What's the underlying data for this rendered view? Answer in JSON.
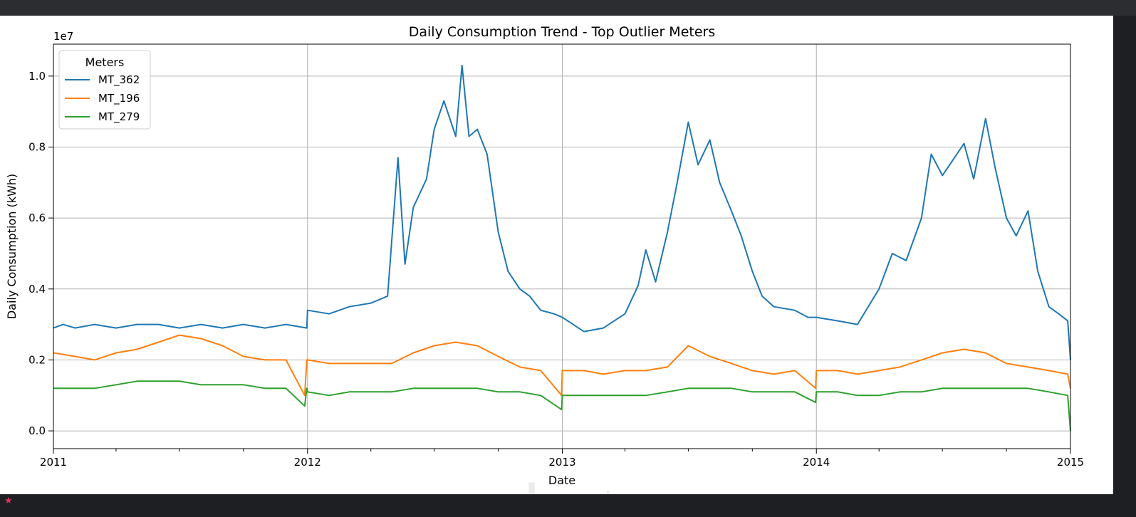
{
  "window": {
    "top_strip_text": "",
    "bottom_note": "",
    "watermark_text": "خمسات"
  },
  "chart_data": {
    "type": "line",
    "title": "Daily Consumption Trend - Top Outlier Meters",
    "xlabel": "Date",
    "ylabel": "Daily Consumption (kWh)",
    "y_scale_label": "1e7",
    "xlim": [
      "2011-01-01",
      "2015-01-01"
    ],
    "ylim": [
      -0.05,
      1.09
    ],
    "y_multiplier": 10000000,
    "x_ticks": [
      "2011",
      "2012",
      "2013",
      "2014",
      "2015"
    ],
    "y_ticks": [
      "0.0",
      "0.2",
      "0.4",
      "0.6",
      "0.8",
      "1.0"
    ],
    "grid": true,
    "legend": {
      "title": "Meters",
      "placement": "top-left"
    },
    "series": [
      {
        "name": "MT_362",
        "color": "#1f77b4",
        "x": [
          "2011-01-01",
          "2011-01-15",
          "2011-02-01",
          "2011-03-01",
          "2011-04-01",
          "2011-05-01",
          "2011-06-01",
          "2011-07-01",
          "2011-08-01",
          "2011-09-01",
          "2011-10-01",
          "2011-11-01",
          "2011-12-01",
          "2011-12-31",
          "2012-01-01",
          "2012-02-01",
          "2012-03-01",
          "2012-04-01",
          "2012-04-25",
          "2012-05-10",
          "2012-05-20",
          "2012-06-01",
          "2012-06-20",
          "2012-07-01",
          "2012-07-15",
          "2012-08-01",
          "2012-08-10",
          "2012-08-20",
          "2012-09-01",
          "2012-09-15",
          "2012-10-01",
          "2012-10-15",
          "2012-11-01",
          "2012-11-15",
          "2012-12-01",
          "2012-12-20",
          "2013-01-01",
          "2013-02-01",
          "2013-03-01",
          "2013-04-01",
          "2013-04-20",
          "2013-05-01",
          "2013-05-15",
          "2013-06-01",
          "2013-06-15",
          "2013-07-01",
          "2013-07-15",
          "2013-08-01",
          "2013-08-15",
          "2013-09-01",
          "2013-09-15",
          "2013-10-01",
          "2013-10-15",
          "2013-11-01",
          "2013-12-01",
          "2013-12-20",
          "2014-01-01",
          "2014-02-01",
          "2014-03-01",
          "2014-04-01",
          "2014-04-20",
          "2014-05-10",
          "2014-06-01",
          "2014-06-15",
          "2014-07-01",
          "2014-07-15",
          "2014-08-01",
          "2014-08-15",
          "2014-09-01",
          "2014-09-15",
          "2014-10-01",
          "2014-10-15",
          "2014-11-01",
          "2014-11-15",
          "2014-12-01",
          "2014-12-15",
          "2014-12-28",
          "2015-01-01"
        ],
        "values": [
          0.29,
          0.3,
          0.29,
          0.3,
          0.29,
          0.3,
          0.3,
          0.29,
          0.3,
          0.29,
          0.3,
          0.29,
          0.3,
          0.29,
          0.34,
          0.33,
          0.35,
          0.36,
          0.38,
          0.77,
          0.47,
          0.63,
          0.71,
          0.85,
          0.93,
          0.83,
          1.03,
          0.83,
          0.85,
          0.78,
          0.56,
          0.45,
          0.4,
          0.38,
          0.34,
          0.33,
          0.32,
          0.28,
          0.29,
          0.33,
          0.41,
          0.51,
          0.42,
          0.56,
          0.7,
          0.87,
          0.75,
          0.82,
          0.7,
          0.62,
          0.55,
          0.45,
          0.38,
          0.35,
          0.34,
          0.32,
          0.32,
          0.31,
          0.3,
          0.4,
          0.5,
          0.48,
          0.6,
          0.78,
          0.72,
          0.76,
          0.81,
          0.71,
          0.88,
          0.74,
          0.6,
          0.55,
          0.62,
          0.45,
          0.35,
          0.33,
          0.31,
          0.2
        ]
      },
      {
        "name": "MT_196",
        "color": "#ff7f0e",
        "x": [
          "2011-01-01",
          "2011-02-01",
          "2011-03-01",
          "2011-04-01",
          "2011-05-01",
          "2011-06-01",
          "2011-07-01",
          "2011-08-01",
          "2011-09-01",
          "2011-10-01",
          "2011-11-01",
          "2011-12-01",
          "2011-12-28",
          "2011-12-31",
          "2012-01-01",
          "2012-02-01",
          "2012-03-01",
          "2012-04-01",
          "2012-05-01",
          "2012-06-01",
          "2012-07-01",
          "2012-08-01",
          "2012-09-01",
          "2012-10-01",
          "2012-11-01",
          "2012-12-01",
          "2012-12-31",
          "2013-01-01",
          "2013-02-01",
          "2013-03-01",
          "2013-04-01",
          "2013-05-01",
          "2013-06-01",
          "2013-07-01",
          "2013-08-01",
          "2013-09-01",
          "2013-10-01",
          "2013-11-01",
          "2013-12-01",
          "2013-12-31",
          "2014-01-01",
          "2014-02-01",
          "2014-03-01",
          "2014-04-01",
          "2014-05-01",
          "2014-06-01",
          "2014-07-01",
          "2014-08-01",
          "2014-09-01",
          "2014-10-01",
          "2014-11-01",
          "2014-12-01",
          "2014-12-28",
          "2015-01-01"
        ],
        "values": [
          0.22,
          0.21,
          0.2,
          0.22,
          0.23,
          0.25,
          0.27,
          0.26,
          0.24,
          0.21,
          0.2,
          0.2,
          0.1,
          0.2,
          0.2,
          0.19,
          0.19,
          0.19,
          0.19,
          0.22,
          0.24,
          0.25,
          0.24,
          0.21,
          0.18,
          0.17,
          0.1,
          0.17,
          0.17,
          0.16,
          0.17,
          0.17,
          0.18,
          0.24,
          0.21,
          0.19,
          0.17,
          0.16,
          0.17,
          0.12,
          0.17,
          0.17,
          0.16,
          0.17,
          0.18,
          0.2,
          0.22,
          0.23,
          0.22,
          0.19,
          0.18,
          0.17,
          0.16,
          0.12
        ]
      },
      {
        "name": "MT_279",
        "color": "#2ca02c",
        "x": [
          "2011-01-01",
          "2011-02-01",
          "2011-03-01",
          "2011-04-01",
          "2011-05-01",
          "2011-06-01",
          "2011-07-01",
          "2011-08-01",
          "2011-09-01",
          "2011-10-01",
          "2011-11-01",
          "2011-12-01",
          "2011-12-28",
          "2011-12-31",
          "2012-01-01",
          "2012-02-01",
          "2012-03-01",
          "2012-04-01",
          "2012-05-01",
          "2012-06-01",
          "2012-07-01",
          "2012-08-01",
          "2012-09-01",
          "2012-10-01",
          "2012-11-01",
          "2012-12-01",
          "2012-12-31",
          "2013-01-01",
          "2013-02-01",
          "2013-03-01",
          "2013-04-01",
          "2013-05-01",
          "2013-06-01",
          "2013-07-01",
          "2013-08-01",
          "2013-09-01",
          "2013-10-01",
          "2013-11-01",
          "2013-12-01",
          "2013-12-31",
          "2014-01-01",
          "2014-02-01",
          "2014-03-01",
          "2014-04-01",
          "2014-05-01",
          "2014-06-01",
          "2014-07-01",
          "2014-08-01",
          "2014-09-01",
          "2014-10-01",
          "2014-11-01",
          "2014-12-01",
          "2014-12-28",
          "2015-01-01"
        ],
        "values": [
          0.12,
          0.12,
          0.12,
          0.13,
          0.14,
          0.14,
          0.14,
          0.13,
          0.13,
          0.13,
          0.12,
          0.12,
          0.07,
          0.12,
          0.11,
          0.1,
          0.11,
          0.11,
          0.11,
          0.12,
          0.12,
          0.12,
          0.12,
          0.11,
          0.11,
          0.1,
          0.06,
          0.1,
          0.1,
          0.1,
          0.1,
          0.1,
          0.11,
          0.12,
          0.12,
          0.12,
          0.11,
          0.11,
          0.11,
          0.08,
          0.11,
          0.11,
          0.1,
          0.1,
          0.11,
          0.11,
          0.12,
          0.12,
          0.12,
          0.12,
          0.12,
          0.11,
          0.1,
          0.0
        ]
      }
    ]
  }
}
